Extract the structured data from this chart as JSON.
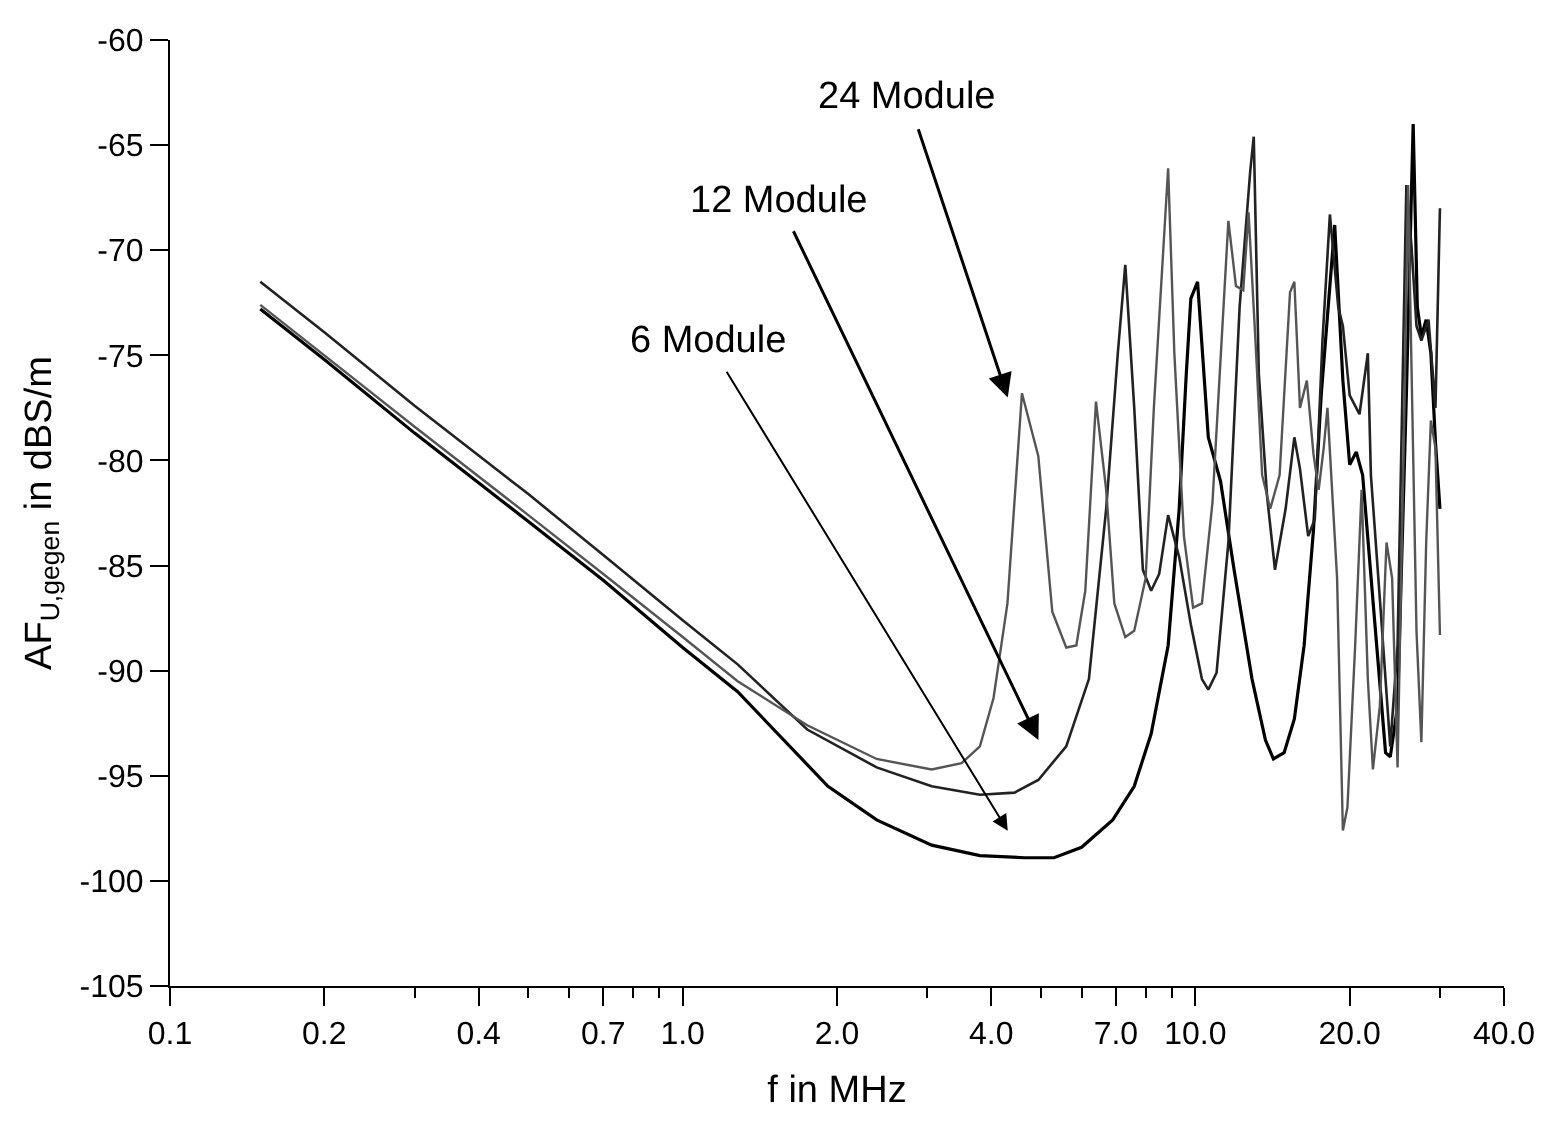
{
  "chart_data": {
    "type": "line",
    "xlabel": "f in MHz",
    "ylabel": "AF$_{U,gegen}$ in dBS/m",
    "log": "x",
    "grid": false,
    "marker": "none",
    "line_style": "solid",
    "xlim": [
      0.1,
      40
    ],
    "ylim": [
      -105,
      -60
    ],
    "xticks": [
      0.1,
      0.2,
      {
        "value": 0.3,
        "label": null
      },
      0.4,
      {
        "value": 0.5,
        "label": null
      },
      {
        "value": 0.6,
        "label": null
      },
      0.7,
      {
        "value": 0.8,
        "label": null
      },
      {
        "value": 0.9,
        "label": null
      },
      {
        "value": 1,
        "label": "1.0"
      },
      {
        "value": 2,
        "label": "2.0"
      },
      {
        "value": 3,
        "label": null
      },
      {
        "value": 4,
        "label": "4.0"
      },
      {
        "value": 5,
        "label": null
      },
      {
        "value": 6,
        "label": null
      },
      {
        "value": 7,
        "label": "7.0"
      },
      {
        "value": 8,
        "label": null
      },
      {
        "value": 9,
        "label": null
      },
      {
        "value": 10,
        "label": "10.0"
      },
      {
        "value": 20,
        "label": "20.0"
      },
      {
        "value": 30,
        "label": null
      },
      {
        "value": 40,
        "label": "40.0"
      }
    ],
    "yticks": [
      -105,
      -100,
      -95,
      -90,
      -85,
      -80,
      -75,
      -70,
      -65,
      -60
    ],
    "series": [
      {
        "color": "#000000",
        "x": [
          0.15,
          0.2,
          0.3,
          0.5,
          0.7,
          1.0,
          1.28,
          1.92,
          2.39,
          3.06,
          3.8,
          4.65,
          5.3,
          6.0,
          6.9,
          7.6,
          8.2,
          8.85,
          9.3,
          9.6,
          9.8,
          10.1,
          10.6,
          11.2,
          11.9,
          12.9,
          13.7,
          14.2,
          14.9,
          15.6,
          16.3,
          17.0,
          17.6,
          18.7,
          19.4,
          20.0,
          20.6,
          21.2,
          22.3,
          23.5,
          24.0,
          24.8,
          25.8,
          26.6,
          27.1,
          27.6,
          28.2,
          28.8,
          29.4,
          30.0
        ],
        "values": [
          -72.8,
          -75.2,
          -78.7,
          -82.9,
          -85.7,
          -88.9,
          -91.0,
          -95.5,
          -97.1,
          -98.3,
          -98.8,
          -98.9,
          -98.9,
          -98.4,
          -97.1,
          -95.5,
          -93.0,
          -88.8,
          -82.3,
          -75.9,
          -72.3,
          -71.5,
          -78.9,
          -81.0,
          -85.2,
          -90.4,
          -93.3,
          -94.2,
          -93.9,
          -92.3,
          -88.8,
          -83.3,
          -76.9,
          -68.8,
          -76.2,
          -80.2,
          -79.6,
          -80.7,
          -87.2,
          -93.9,
          -94.1,
          -91.7,
          -76.9,
          -64.0,
          -72.7,
          -74.1,
          -73.3,
          -74.9,
          -79.1,
          -82.3
        ]
      },
      {
        "color": "#222222",
        "x": [
          0.15,
          0.2,
          0.3,
          0.5,
          0.7,
          1.0,
          1.28,
          1.75,
          2.39,
          3.06,
          3.8,
          4.44,
          4.94,
          5.6,
          6.2,
          6.7,
          7.06,
          7.3,
          7.6,
          7.9,
          8.2,
          8.5,
          8.85,
          9.3,
          9.8,
          10.3,
          10.6,
          11.0,
          11.6,
          12.2,
          12.8,
          13.0,
          13.3,
          13.8,
          14.3,
          15.0,
          15.6,
          16.0,
          16.6,
          17.1,
          17.7,
          18.3,
          19.0,
          19.4,
          20.0,
          20.9,
          21.7,
          22.0,
          23.0,
          24.0,
          24.8,
          25.8,
          26.4,
          27.0,
          27.6,
          28.5,
          29.4,
          30.0
        ],
        "values": [
          -71.5,
          -73.9,
          -77.4,
          -81.6,
          -84.5,
          -87.6,
          -89.7,
          -92.8,
          -94.6,
          -95.5,
          -95.9,
          -95.8,
          -95.2,
          -93.6,
          -90.4,
          -82.3,
          -74.9,
          -70.7,
          -77.5,
          -85.2,
          -86.2,
          -85.4,
          -82.6,
          -84.6,
          -87.8,
          -90.4,
          -90.9,
          -90.1,
          -83.9,
          -72.7,
          -66.2,
          -64.6,
          -75.9,
          -81.7,
          -85.2,
          -82.3,
          -78.9,
          -80.4,
          -83.6,
          -82.8,
          -74.3,
          -68.3,
          -72.7,
          -73.6,
          -76.9,
          -77.8,
          -74.9,
          -80.7,
          -87.2,
          -93.6,
          -88.8,
          -66.9,
          -69.8,
          -73.6,
          -74.3,
          -73.3,
          -77.5,
          -68.0
        ]
      },
      {
        "color": "#555555",
        "x": [
          0.15,
          0.2,
          0.3,
          0.5,
          0.7,
          1.0,
          1.28,
          1.75,
          2.39,
          3.06,
          3.5,
          3.8,
          4.04,
          4.3,
          4.59,
          4.94,
          5.26,
          5.6,
          5.86,
          6.1,
          6.4,
          6.7,
          6.95,
          7.3,
          7.6,
          8.0,
          8.3,
          8.85,
          9.1,
          9.5,
          9.9,
          10.3,
          10.8,
          11.6,
          12.0,
          12.4,
          12.7,
          13.1,
          13.5,
          14.0,
          14.6,
          15.3,
          15.6,
          16.0,
          16.5,
          17.0,
          17.4,
          17.8,
          18.1,
          18.9,
          19.4,
          19.8,
          20.5,
          21.1,
          21.7,
          22.2,
          22.9,
          23.6,
          24.2,
          24.8,
          25.6,
          26.0,
          27.0,
          27.6,
          28.2,
          28.8,
          29.4,
          30.0
        ],
        "values": [
          -72.6,
          -75.0,
          -78.4,
          -82.6,
          -85.4,
          -88.4,
          -90.5,
          -92.6,
          -94.2,
          -94.7,
          -94.4,
          -93.6,
          -91.3,
          -86.8,
          -76.8,
          -79.8,
          -87.2,
          -88.9,
          -88.8,
          -86.2,
          -77.2,
          -81.4,
          -86.8,
          -88.4,
          -88.1,
          -85.6,
          -77.5,
          -66.1,
          -74.9,
          -83.6,
          -87.0,
          -86.8,
          -82.0,
          -68.6,
          -71.7,
          -71.9,
          -68.2,
          -74.3,
          -80.7,
          -82.3,
          -80.7,
          -72.0,
          -71.5,
          -77.5,
          -76.2,
          -79.7,
          -81.4,
          -79.4,
          -77.5,
          -85.6,
          -97.6,
          -96.5,
          -88.8,
          -81.4,
          -90.4,
          -94.7,
          -91.7,
          -83.9,
          -85.6,
          -94.6,
          -76.9,
          -66.9,
          -88.1,
          -93.4,
          -83.9,
          -78.1,
          -79.4,
          -88.3
        ]
      }
    ],
    "annotations": [
      "24 Module",
      "12 Module",
      "6 Module"
    ]
  }
}
